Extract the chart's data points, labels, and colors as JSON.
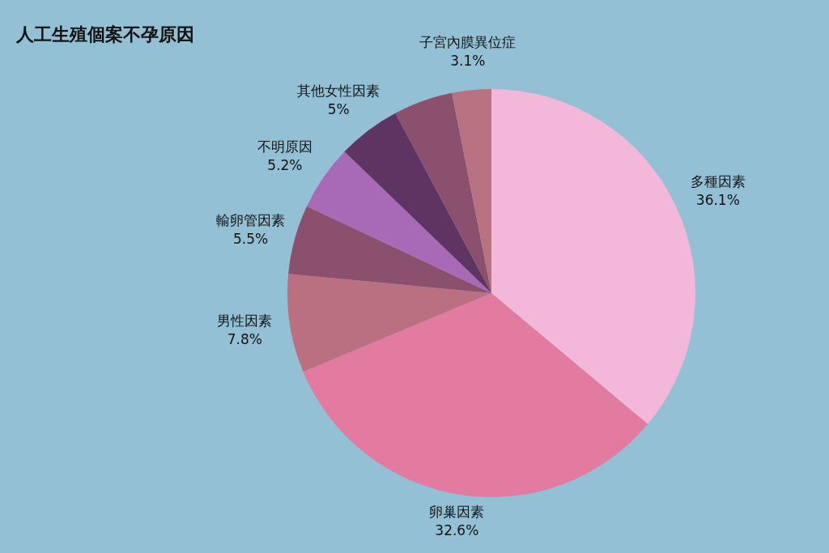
{
  "chart_data": {
    "type": "pie",
    "title": "人工生殖個案不孕原因",
    "categories": [
      "多種因素",
      "卵巢因素",
      "男性因素",
      "輸卵管因素",
      "不明原因",
      "其他女性因素",
      null,
      "子宮內膜異位症"
    ],
    "values": [
      36.1,
      32.6,
      7.8,
      5.5,
      5.2,
      5,
      4.7,
      3.1
    ],
    "value_labels": [
      "36.1%",
      "32.6%",
      "7.8%",
      "5.5%",
      "5.2%",
      "5%",
      null,
      "3.1%"
    ],
    "colors": [
      "#f3b8d9",
      "#e37aa0",
      "#bb7082",
      "#8b506e",
      "#a86ab6",
      "#5e3562",
      "#8b506e",
      "#b87282"
    ]
  }
}
